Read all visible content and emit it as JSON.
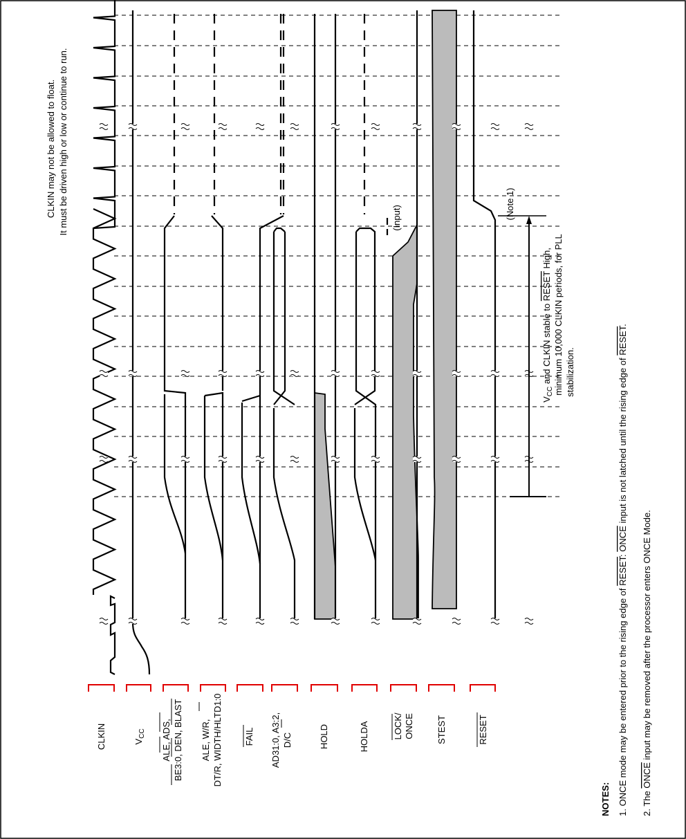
{
  "signals": [
    {
      "id": "clkin",
      "label": "CLKIN"
    },
    {
      "id": "vcc",
      "label": "V",
      "sub": "CC"
    },
    {
      "id": "ale1",
      "label": "ALE, ADS,",
      "label2": "BE3:0, DEN, BLAST"
    },
    {
      "id": "ale2",
      "label": "ALE, W/R,",
      "label2": "DT/R, WIDTH/HLTD1:0"
    },
    {
      "id": "fail",
      "label": "FAIL"
    },
    {
      "id": "ad",
      "label": "AD31:0, A3:2,",
      "label2": "D/C"
    },
    {
      "id": "hold",
      "label": "HOLD"
    },
    {
      "id": "holda",
      "label": "HOLDA"
    },
    {
      "id": "lock",
      "label": "LOCK/",
      "label2": "ONCE"
    },
    {
      "id": "stest",
      "label": "STEST"
    },
    {
      "id": "reset",
      "label": "RESET"
    }
  ],
  "annotations": {
    "clkin_float_1": "CLKIN may not be allowed to float.",
    "clkin_float_2": "It must be driven high or low or continue to run.",
    "input": "(Input)",
    "note1": "(Note 1)",
    "vcc_stable_1_pre": "V",
    "vcc_stable_1_sub": "CC",
    "vcc_stable_1_mid": " and CLKIN stable to ",
    "vcc_stable_1_reset": "RESET",
    "vcc_stable_1_post": " High,",
    "vcc_stable_2": "minimum 10,000 CLKIN periods, for PLL",
    "vcc_stable_3": "stabilization."
  },
  "notes": {
    "title": "NOTES:",
    "n1_a": "1. ONCE mode may be entered prior to the rising edge of ",
    "n1_b": "RESET",
    "n1_c": ": ",
    "n1_d": "ONCE",
    "n1_e": " input is not latched until the rising edge of ",
    "n1_f": "RESET",
    "n1_g": ".",
    "n2_a": "2. The ",
    "n2_b": "ONCE",
    "n2_c": " input may be removed after the processor enters ONCE Mode."
  }
}
